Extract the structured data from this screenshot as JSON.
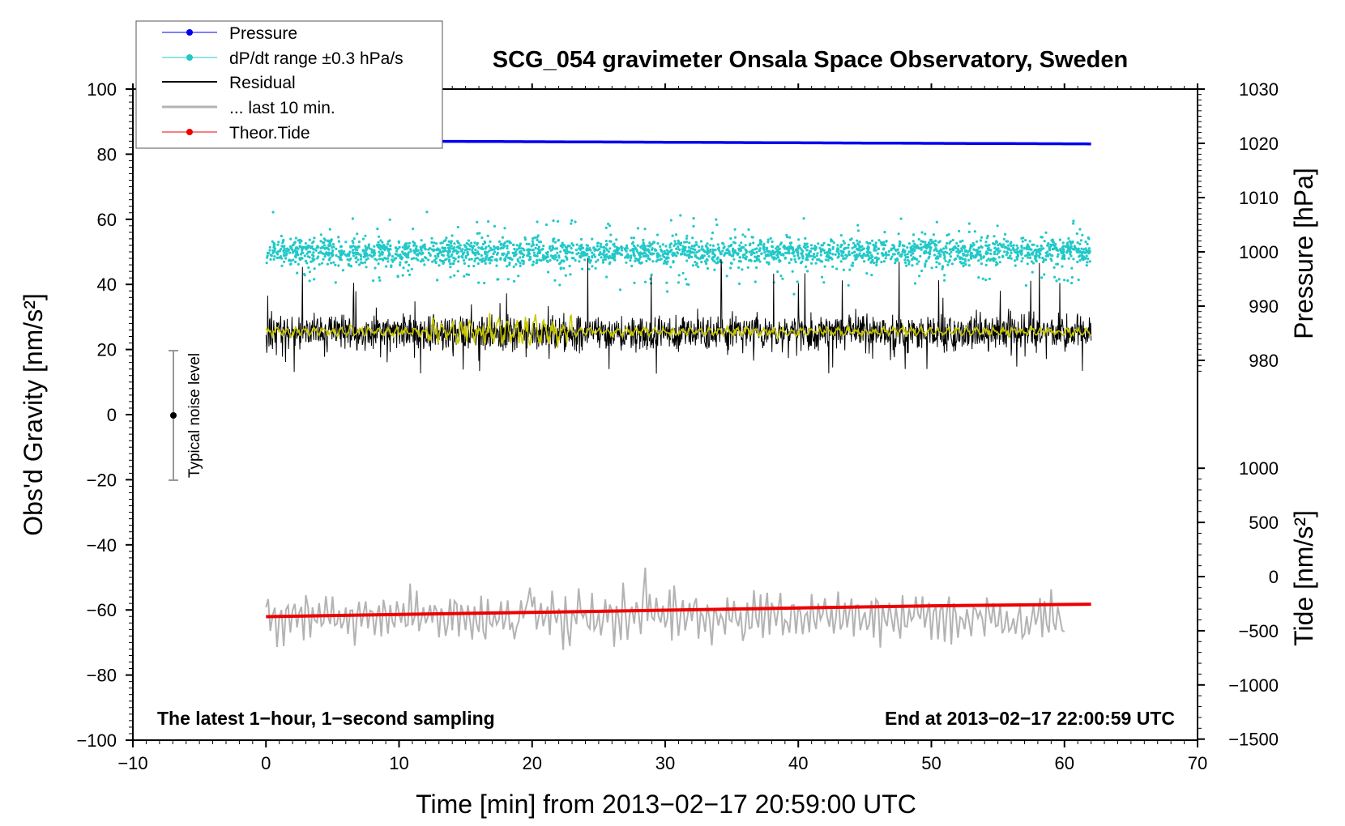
{
  "chart_data": {
    "type": "line",
    "title": "SCG_054 gravimeter Onsala Space Observatory, Sweden",
    "xlabel": "Time [min] from 2013−02−17 20:59:00 UTC",
    "ylabel_left": "Obs'd Gravity [nm/s²]",
    "ylabel_right_top": "Pressure [hPa]",
    "ylabel_right_bottom": "Tide [nm/s²]",
    "xlim": [
      -10,
      70
    ],
    "ylim_left": [
      -100,
      100
    ],
    "x_ticks": [
      "−10",
      "0",
      "10",
      "20",
      "30",
      "40",
      "50",
      "60",
      "70"
    ],
    "y_ticks_left": [
      "−100",
      "−80",
      "−60",
      "−40",
      "−20",
      "0",
      "20",
      "40",
      "60",
      "80",
      "100"
    ],
    "pressure_ticks": [
      "980",
      "990",
      "1000",
      "1010",
      "1020",
      "1030"
    ],
    "tide_ticks": [
      "−1500",
      "−1000",
      "−500",
      "0",
      "500",
      "1000"
    ],
    "legend": [
      {
        "label": "Pressure",
        "color": "#0000ee",
        "style": "line-dot"
      },
      {
        "label": "dP/dt range ±0.3 hPa/s",
        "color": "#22c8c8",
        "style": "line-dot"
      },
      {
        "label": "Residual",
        "color": "#000000",
        "style": "line"
      },
      {
        "label": "... last 10 min.",
        "color": "#b3b3b3",
        "style": "line"
      },
      {
        "label": "Theor.Tide",
        "color": "#ee0000",
        "style": "line-dot"
      }
    ],
    "series": [
      {
        "name": "Pressure",
        "axis": "pressure_hPa",
        "color": "#0000ee",
        "x": [
          0,
          10,
          20,
          30,
          40,
          50,
          62
        ],
        "y": [
          1020.5,
          1020.4,
          1020.3,
          1020.2,
          1020.1,
          1020.0,
          1019.9
        ]
      },
      {
        "name": "dP/dt range ±0.3 hPa/s",
        "axis": "left",
        "color": "#22c8c8",
        "x_range": [
          0,
          62
        ],
        "center": 50,
        "typical_spread": 4,
        "max_spread": 13
      },
      {
        "name": "Residual",
        "axis": "left",
        "color": "#000000",
        "x_range": [
          0,
          62
        ],
        "center": 25,
        "min": 2,
        "max": 48
      },
      {
        "name": "Residual smoothed",
        "axis": "left",
        "color": "#c8c800",
        "x_range": [
          0,
          62
        ],
        "center": 25.5
      },
      {
        "name": "... last 10 min.",
        "axis": "left",
        "color": "#b3b3b3",
        "x_range": [
          0,
          60
        ],
        "center": -62,
        "min": -79,
        "max": -46
      },
      {
        "name": "Theor.Tide",
        "axis": "tide_nm_s2",
        "color": "#ee0000",
        "x": [
          0,
          10,
          20,
          30,
          40,
          50,
          62
        ],
        "y": [
          -370,
          -350,
          -330,
          -310,
          -290,
          -270,
          -255
        ]
      }
    ],
    "noise_level": {
      "label": "Typical noise level",
      "x": -7,
      "center": 0,
      "low": -20,
      "high": 20
    },
    "annotations": {
      "left": "The latest 1−hour, 1−second sampling",
      "right": "End at 2013−02−17 22:00:59 UTC"
    }
  }
}
